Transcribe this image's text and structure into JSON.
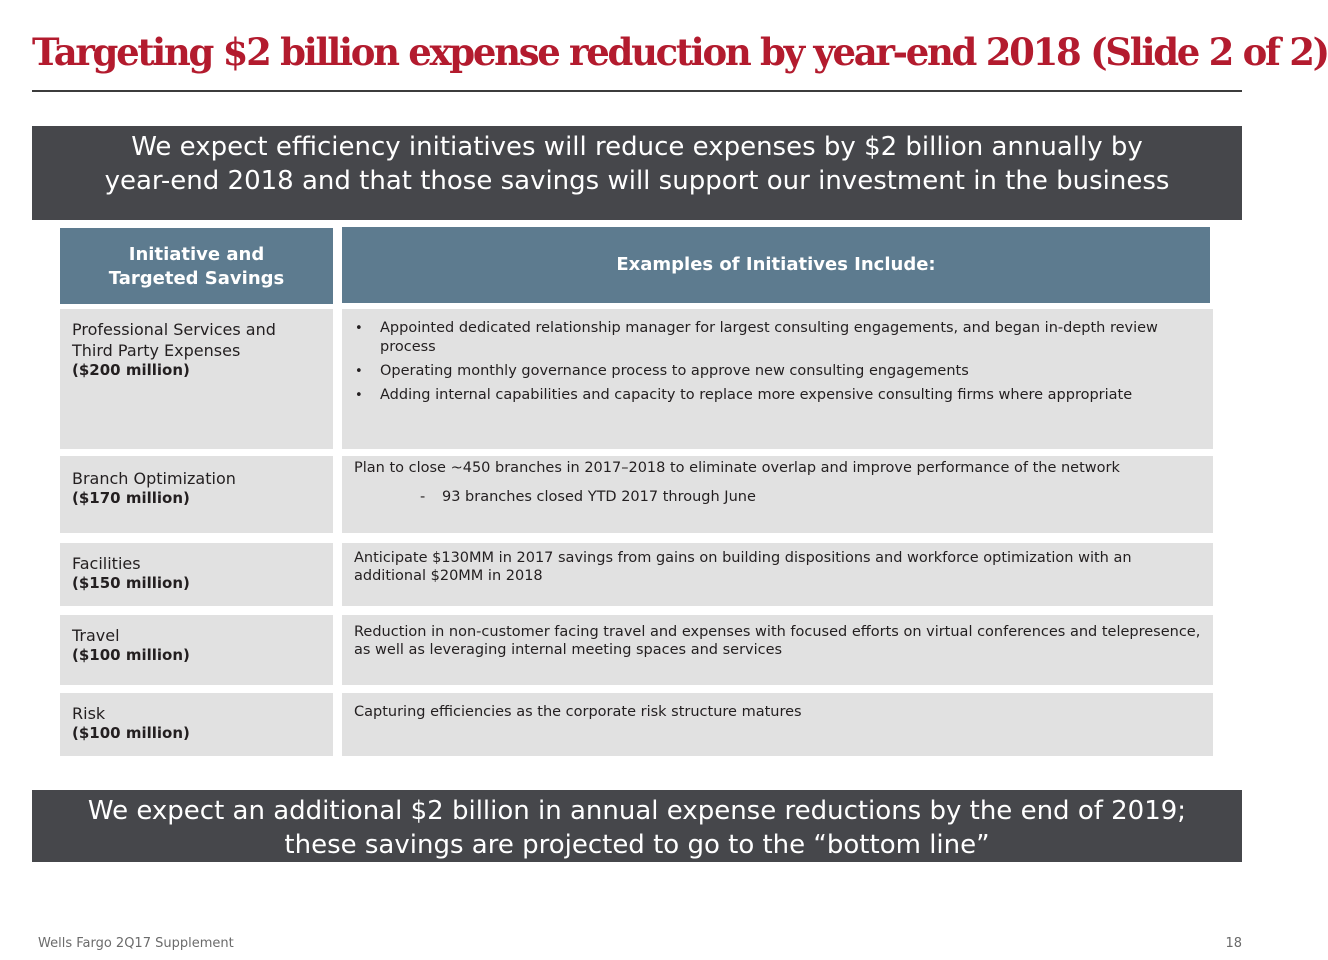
{
  "title": "Targeting $2 billion expense reduction by year-end 2018 (Slide 2 of 2)",
  "top_banner": {
    "line1": "We expect efficiency initiatives will reduce expenses by $2 billion annually by",
    "line2": "year-end 2018 and that those savings will support our investment in the business"
  },
  "table": {
    "header_left_line1": "Initiative and",
    "header_left_line2": "Targeted Savings",
    "header_right": "Examples of Initiatives Include:",
    "rows": [
      {
        "name_line1": "Professional Services and",
        "name_line2": "Third Party Expenses",
        "savings": "($200 million)",
        "bullets": [
          "Appointed dedicated relationship manager for largest consulting engagements, and began in-depth review process",
          "Operating monthly governance process to approve new consulting engagements",
          "Adding internal capabilities and capacity to replace more expensive consulting firms where appropriate"
        ]
      },
      {
        "name": "Branch Optimization",
        "savings": "($170 million)",
        "text": "Plan to close ~450 branches in 2017–2018 to eliminate overlap and improve performance of the network",
        "sub_dash": "-",
        "sub_text": "93 branches closed YTD 2017 through June"
      },
      {
        "name": "Facilities",
        "savings": "($150 million)",
        "text": "Anticipate $130MM in 2017 savings from gains on building dispositions and workforce optimization with an additional $20MM in 2018"
      },
      {
        "name": "Travel",
        "savings": "($100 million)",
        "text": "Reduction in non-customer facing travel and expenses with focused efforts on virtual conferences and telepresence, as well as leveraging internal meeting spaces and services"
      },
      {
        "name": "Risk",
        "savings": "($100 million)",
        "text": "Capturing efficiencies as the corporate risk structure matures"
      }
    ]
  },
  "bottom_banner": {
    "line1": "We expect an additional $2 billion in annual expense reductions by the end of 2019;",
    "line2": "these savings are projected to go to the “bottom line”"
  },
  "footer": {
    "source": "Wells Fargo 2Q17 Supplement",
    "page_number": "18"
  },
  "colors": {
    "title": "#b31b2e",
    "banner_bg": "#46474b",
    "header_bg": "#5d7b8f",
    "cell_bg": "#e1e1e1"
  },
  "bullet_glyph": "•"
}
